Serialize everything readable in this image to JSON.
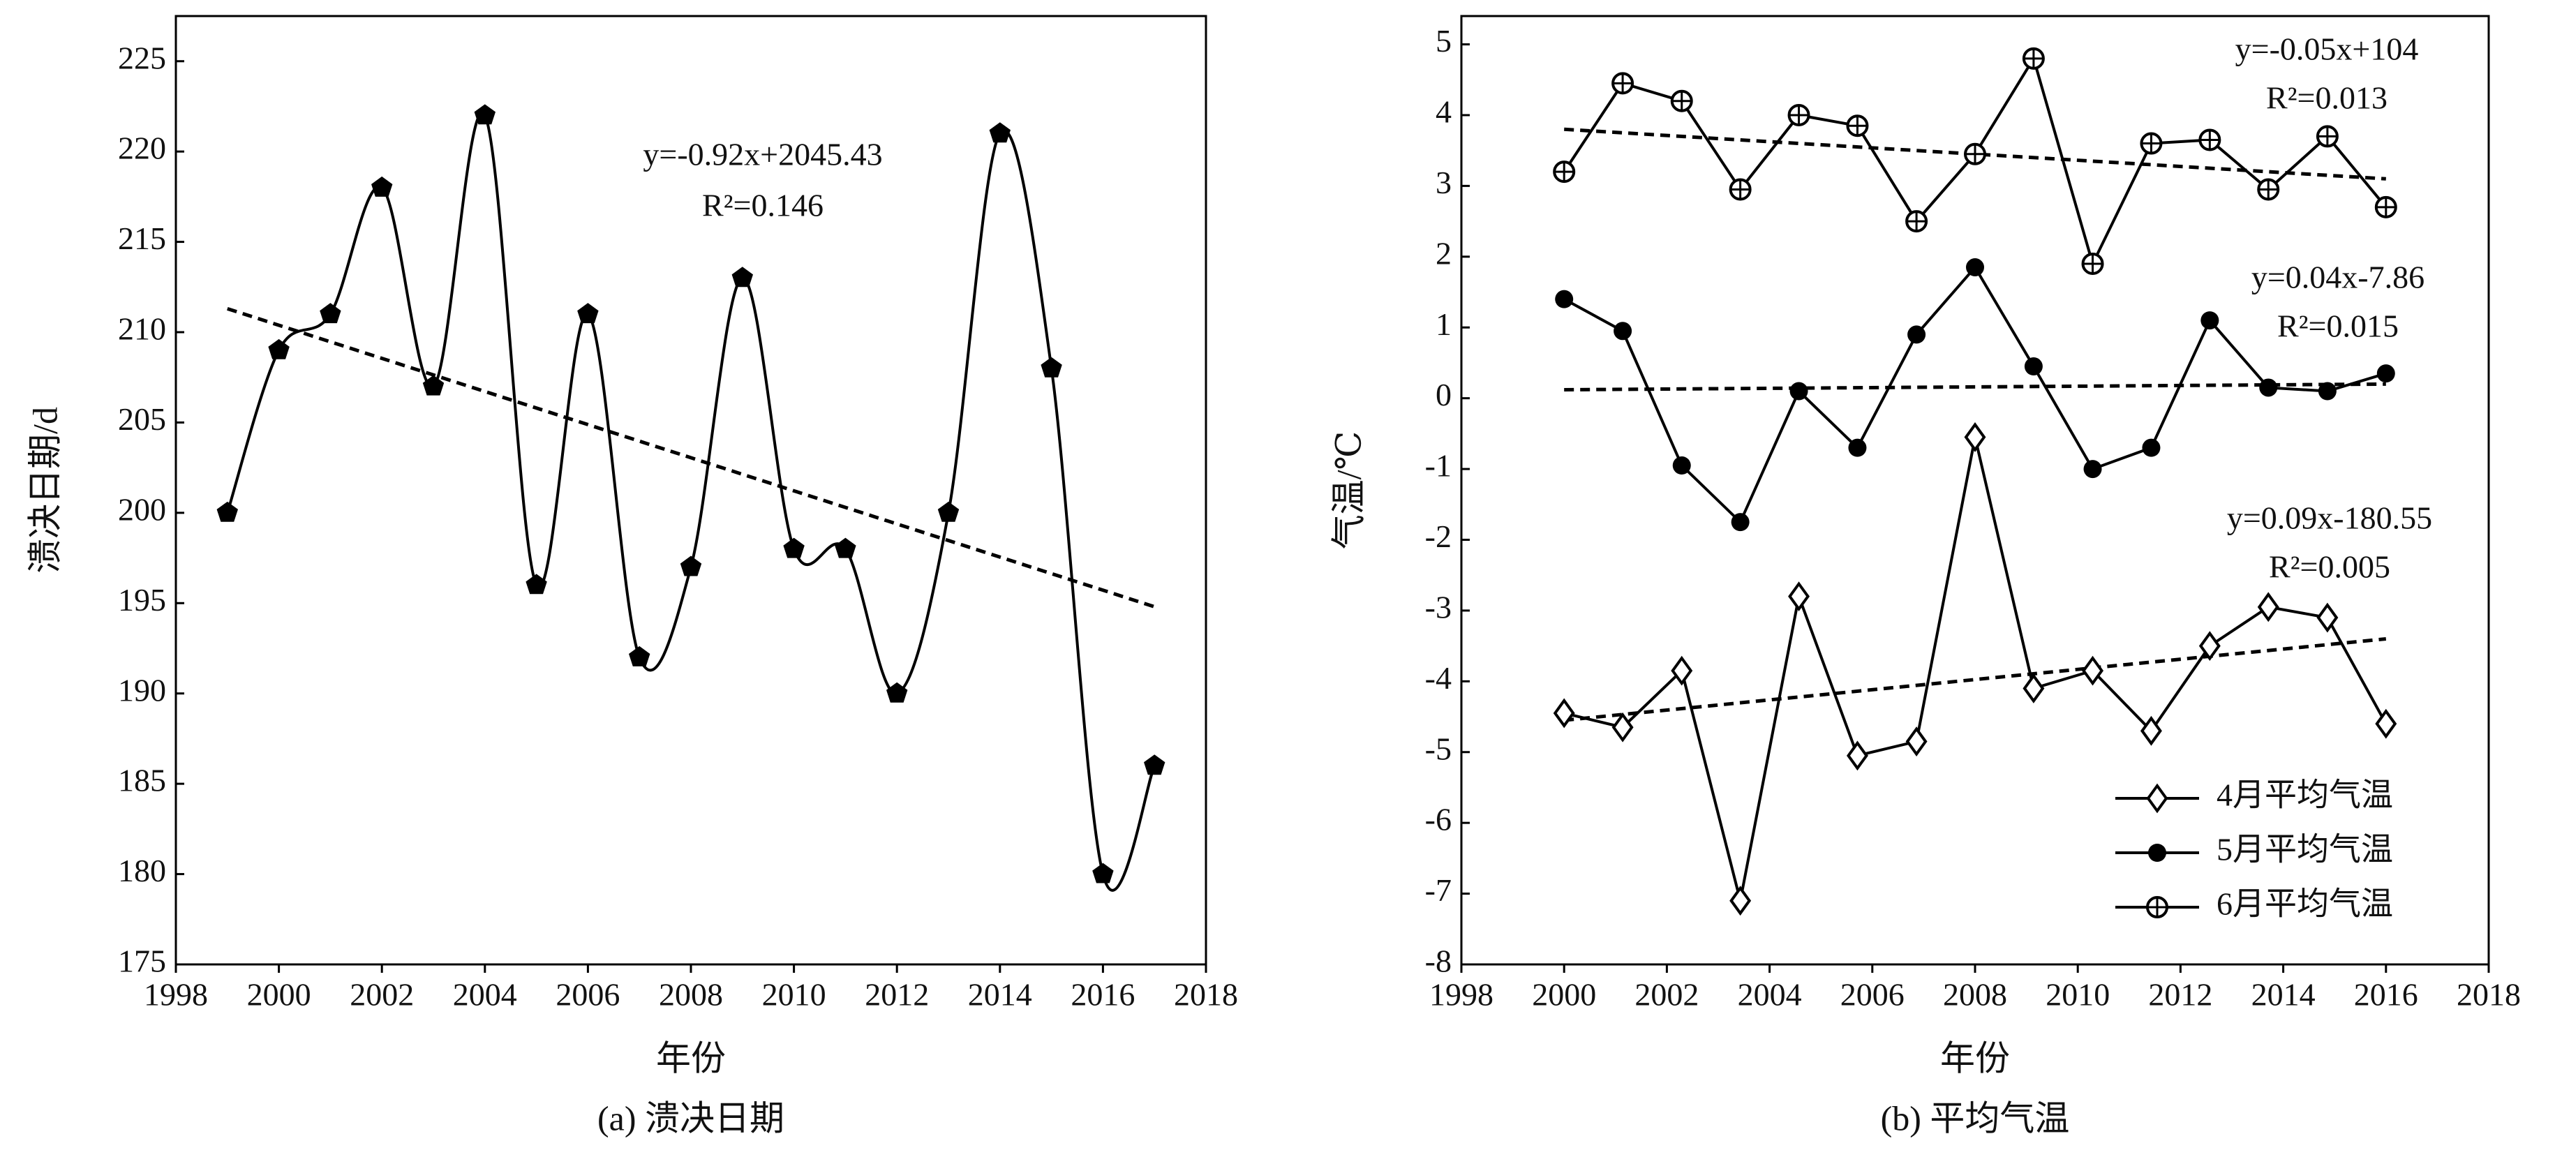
{
  "chart_data": [
    {
      "type": "line",
      "caption": "(a) 溃决日期",
      "xlabel": "年份",
      "ylabel": "溃决日期/d",
      "xlim": [
        1998,
        2018
      ],
      "xticks": [
        1998,
        2000,
        2002,
        2004,
        2006,
        2008,
        2010,
        2012,
        2014,
        2016,
        2018
      ],
      "ylim": [
        175,
        227.5
      ],
      "yticks": [
        175,
        180,
        185,
        190,
        195,
        200,
        205,
        210,
        215,
        220,
        225
      ],
      "series": [
        {
          "name": "溃决日期",
          "color": "#000000",
          "marker": "pentagon",
          "smooth": true,
          "x": [
            1999,
            2000,
            2001,
            2002,
            2003,
            2004,
            2005,
            2006,
            2007,
            2008,
            2009,
            2010,
            2011,
            2012,
            2013,
            2014,
            2015,
            2016,
            2017
          ],
          "values": [
            200,
            209,
            211,
            218,
            207,
            222,
            196,
            211,
            192,
            197,
            213,
            198,
            198,
            190,
            200,
            221,
            208,
            180,
            186
          ]
        }
      ],
      "trendlines": [
        {
          "x": [
            1999,
            2017
          ],
          "values": [
            211.3,
            194.8
          ],
          "equation": "y=-0.92x+2045.43",
          "r2": "R²=0.146"
        }
      ],
      "legend": false
    },
    {
      "type": "line",
      "caption": "(b) 平均气温",
      "xlabel": "年份",
      "ylabel": "气温/℃",
      "xlim": [
        1998,
        2018
      ],
      "xticks": [
        1998,
        2000,
        2002,
        2004,
        2006,
        2008,
        2010,
        2012,
        2014,
        2016,
        2018
      ],
      "ylim": [
        -8,
        5.4
      ],
      "yticks": [
        -8,
        -7,
        -6,
        -5,
        -4,
        -3,
        -2,
        -1,
        0,
        1,
        2,
        3,
        4,
        5
      ],
      "series": [
        {
          "name": "4月平均气温",
          "color": "#000000",
          "marker": "diamond",
          "smooth": false,
          "x": [
            2000,
            2001.14,
            2002.29,
            2003.43,
            2004.57,
            2005.71,
            2006.86,
            2008,
            2009.14,
            2010.29,
            2011.43,
            2012.57,
            2013.71,
            2014.86,
            2016
          ],
          "values": [
            -4.45,
            -4.65,
            -3.85,
            -7.1,
            -2.8,
            -5.05,
            -4.85,
            -0.55,
            -4.1,
            -3.85,
            -4.7,
            -3.5,
            -2.95,
            -3.1,
            -4.6
          ]
        },
        {
          "name": "5月平均气温",
          "color": "#000000",
          "marker": "circle",
          "smooth": false,
          "x": [
            2000,
            2001.14,
            2002.29,
            2003.43,
            2004.57,
            2005.71,
            2006.86,
            2008,
            2009.14,
            2010.29,
            2011.43,
            2012.57,
            2013.71,
            2014.86,
            2016
          ],
          "values": [
            1.4,
            0.95,
            -0.95,
            -1.75,
            0.1,
            -0.7,
            0.9,
            1.85,
            0.45,
            -1.0,
            -0.7,
            1.1,
            0.15,
            0.1,
            0.35
          ]
        },
        {
          "name": "6月平均气温",
          "color": "#000000",
          "marker": "circleplus",
          "smooth": false,
          "x": [
            2000,
            2001.14,
            2002.29,
            2003.43,
            2004.57,
            2005.71,
            2006.86,
            2008,
            2009.14,
            2010.29,
            2011.43,
            2012.57,
            2013.71,
            2014.86,
            2016
          ],
          "values": [
            3.2,
            4.45,
            4.2,
            2.95,
            4.0,
            3.85,
            2.5,
            3.45,
            4.8,
            1.9,
            3.6,
            3.65,
            2.95,
            3.7,
            2.7
          ]
        }
      ],
      "trendlines": [
        {
          "x": [
            2000,
            2016
          ],
          "values": [
            -4.55,
            -3.4
          ],
          "equation": "y=0.09x-180.55",
          "r2": "R²=0.005"
        },
        {
          "x": [
            2000,
            2016
          ],
          "values": [
            0.12,
            0.2
          ],
          "equation": "y=0.04x-7.86",
          "r2": "R²=0.015"
        },
        {
          "x": [
            2000,
            2016
          ],
          "values": [
            3.8,
            3.1
          ],
          "equation": "y=-0.05x+104",
          "r2": "R²=0.013"
        }
      ],
      "legend": "lower right"
    }
  ]
}
